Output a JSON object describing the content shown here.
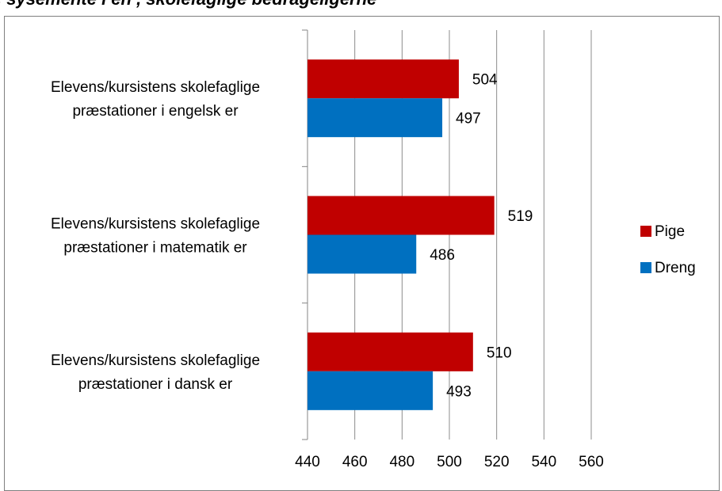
{
  "header": {
    "partial_title": ", sysemente i en , skolefaglige bedrageligerne"
  },
  "chart_data": {
    "type": "bar",
    "orientation": "horizontal",
    "categories": [
      [
        "Elevens/kursistens skolefaglige",
        "præstationer i engelsk er"
      ],
      [
        "Elevens/kursistens skolefaglige",
        "præstationer i matematik er"
      ],
      [
        "Elevens/kursistens skolefaglige",
        "præstationer i dansk er"
      ]
    ],
    "series": [
      {
        "name": "Pige",
        "color": "#c00000",
        "values": [
          504,
          519,
          510
        ]
      },
      {
        "name": "Dreng",
        "color": "#0070c0",
        "values": [
          497,
          486,
          493
        ]
      }
    ],
    "xlim": [
      440,
      560
    ],
    "xticks": [
      "440",
      "460",
      "480",
      "500",
      "520",
      "540",
      "560"
    ],
    "grid": true,
    "legend": "right"
  }
}
